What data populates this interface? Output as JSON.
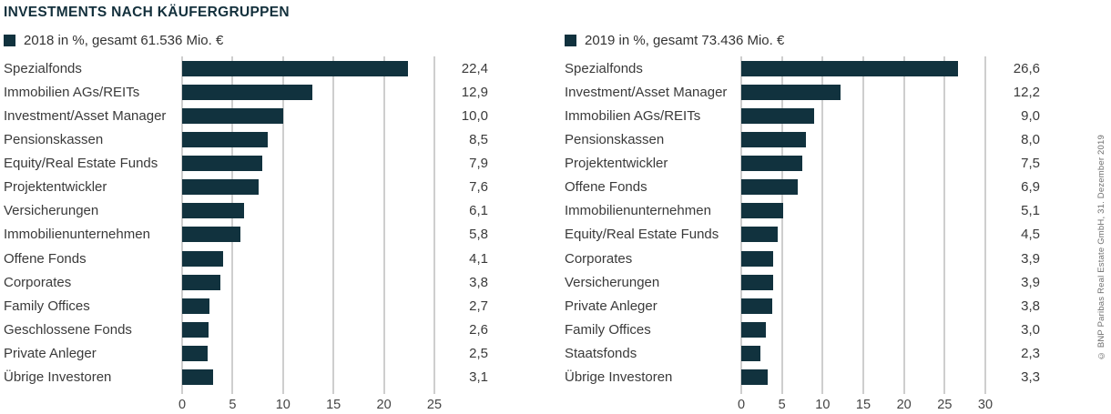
{
  "title": "INVESTMENTS NACH KÄUFERGRUPPEN",
  "copyright": "© BNP Paribas Real Estate GmbH, 31. Dezember 2019",
  "colors": {
    "bar": "#11323e",
    "title": "#13303c",
    "gridline": "#9c9c9c",
    "text": "#3a3a3a"
  },
  "chart_data": [
    {
      "type": "bar",
      "orientation": "horizontal",
      "legend": "2018 in %, gesamt 61.536 Mio. €",
      "categories": [
        "Spezialfonds",
        "Immobilien AGs/REITs",
        "Investment/Asset Manager",
        "Pensionskassen",
        "Equity/Real Estate Funds",
        "Projektentwickler",
        "Versicherungen",
        "Immobilienunternehmen",
        "Offene Fonds",
        "Corporates",
        "Family Offices",
        "Geschlossene Fonds",
        "Private Anleger",
        "Übrige Investoren"
      ],
      "values": [
        22.4,
        12.9,
        10.0,
        8.5,
        7.9,
        7.6,
        6.1,
        5.8,
        4.1,
        3.8,
        2.7,
        2.6,
        2.5,
        3.1
      ],
      "value_labels": [
        "22,4",
        "12,9",
        "10,0",
        "8,5",
        "7,9",
        "7,6",
        "6,1",
        "5,8",
        "4,1",
        "3,8",
        "2,7",
        "2,6",
        "2,5",
        "3,1"
      ],
      "xlim": [
        0,
        25
      ],
      "ticks": [
        0,
        5,
        10,
        15,
        20,
        25
      ],
      "grid": "vertical"
    },
    {
      "type": "bar",
      "orientation": "horizontal",
      "legend": "2019 in %, gesamt 73.436 Mio. €",
      "categories": [
        "Spezialfonds",
        "Investment/Asset Manager",
        "Immobilien AGs/REITs",
        "Pensionskassen",
        "Projektentwickler",
        "Offene Fonds",
        "Immobilienunternehmen",
        "Equity/Real Estate Funds",
        "Corporates",
        "Versicherungen",
        "Private Anleger",
        "Family Offices",
        "Staatsfonds",
        "Übrige Investoren"
      ],
      "values": [
        26.6,
        12.2,
        9.0,
        8.0,
        7.5,
        6.9,
        5.1,
        4.5,
        3.9,
        3.9,
        3.8,
        3.0,
        2.3,
        3.3
      ],
      "value_labels": [
        "26,6",
        "12,2",
        "9,0",
        "8,0",
        "7,5",
        "6,9",
        "5,1",
        "4,5",
        "3,9",
        "3,9",
        "3,8",
        "3,0",
        "2,3",
        "3,3"
      ],
      "xlim": [
        0,
        30
      ],
      "ticks": [
        0,
        5,
        10,
        15,
        20,
        25,
        30
      ],
      "grid": "vertical"
    }
  ]
}
